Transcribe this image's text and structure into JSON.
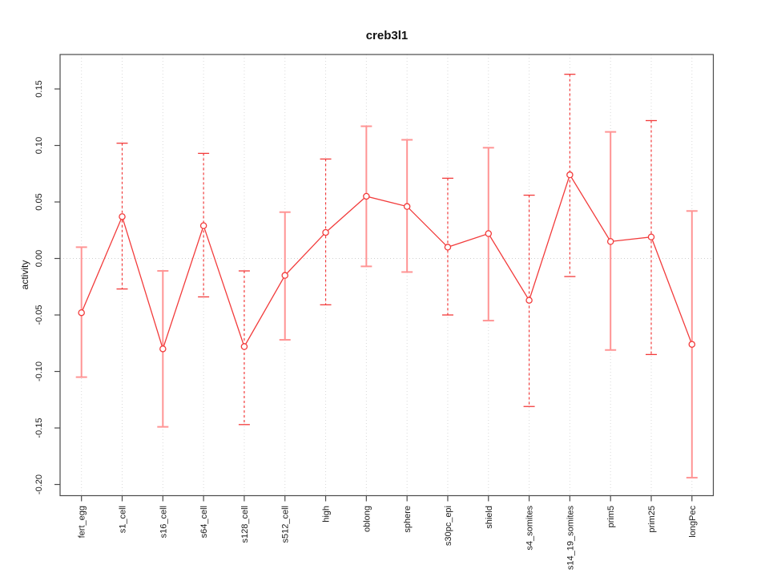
{
  "chart_data": {
    "type": "line",
    "title": "creb3l1",
    "xlabel": "",
    "ylabel": "activity",
    "categories": [
      "fert_egg",
      "s1_cell",
      "s16_cell",
      "s64_cell",
      "s128_cell",
      "s512_cell",
      "high",
      "oblong",
      "sphere",
      "s30pc_epi",
      "shield",
      "s4_somites",
      "s14_19_somites",
      "prim5",
      "prim25",
      "longPec"
    ],
    "series": [
      {
        "name": "activity",
        "values": [
          -0.048,
          0.037,
          -0.08,
          0.029,
          -0.078,
          -0.015,
          0.023,
          0.055,
          0.046,
          0.01,
          0.022,
          -0.037,
          0.074,
          0.015,
          0.019,
          -0.076
        ],
        "error_low": [
          -0.105,
          -0.027,
          -0.149,
          -0.034,
          -0.147,
          -0.072,
          -0.041,
          -0.007,
          -0.012,
          -0.05,
          -0.055,
          -0.131,
          -0.016,
          -0.081,
          -0.085,
          -0.194
        ],
        "error_high": [
          0.01,
          0.102,
          -0.011,
          0.093,
          -0.011,
          0.041,
          0.088,
          0.117,
          0.105,
          0.071,
          0.098,
          0.056,
          0.163,
          0.112,
          0.122,
          0.042
        ],
        "error_bar_styles": [
          "solid",
          "dashed",
          "solid",
          "dashed",
          "dashed",
          "solid",
          "dashed",
          "solid",
          "solid",
          "dashed",
          "solid",
          "dashed",
          "dashed",
          "solid",
          "dashed",
          "solid"
        ]
      }
    ],
    "yticks": [
      0.15,
      0.1,
      0.05,
      0.0,
      -0.05,
      -0.1,
      -0.15,
      -0.2
    ],
    "ytick_labels": [
      "0.15",
      "0.10",
      "0.05",
      "0.00",
      "-0.05",
      "-0.10",
      "-0.15",
      "-0.20"
    ],
    "ylim": [
      -0.2099,
      0.1805
    ],
    "grid": "vertical-dotted-per-category",
    "zero_line": true,
    "legend": "none",
    "marker": "open-circle",
    "colors": {
      "series": "#f23b3b",
      "error_solid": "#ff9494",
      "error_dashed": "#f23b3b",
      "grid": "#d9d9d9",
      "zero_line": "#cfcfcf",
      "axis": "#4a4a4a",
      "text": "#1a1a1a",
      "background": "#ffffff"
    }
  }
}
